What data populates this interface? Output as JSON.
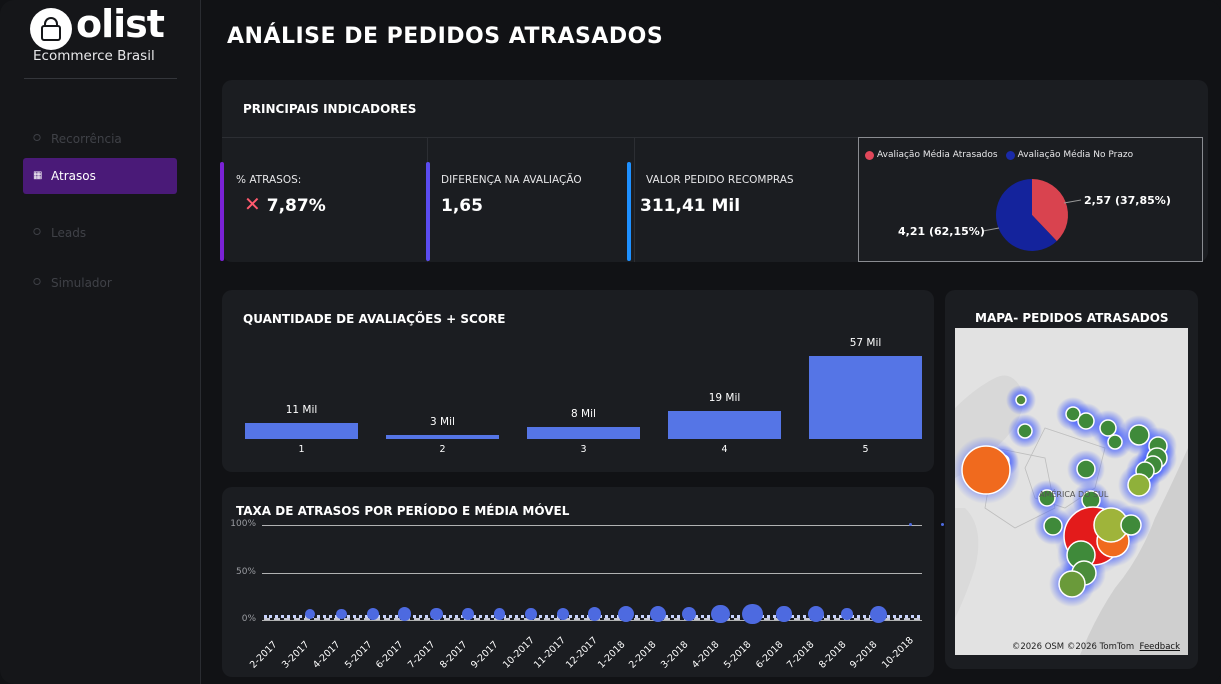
{
  "brand": {
    "name": "olist",
    "subtitle": "Ecommerce Brasil",
    "icon": "shopping-bag-icon"
  },
  "nav": {
    "items": [
      {
        "label": "Recorrência",
        "icon": "share-icon",
        "active": false
      },
      {
        "label": "Atrasos",
        "icon": "grid-icon",
        "active": true
      },
      {
        "label": "Leads",
        "icon": "share-icon",
        "active": false
      },
      {
        "label": "Simulador",
        "icon": "share-icon",
        "active": false
      }
    ]
  },
  "page": {
    "title": "ANÁLISE DE PEDIDOS ATRASADOS"
  },
  "kpis": {
    "title": "PRINCIPAIS INDICADORES",
    "items": [
      {
        "label": "% ATRASOS:",
        "value": "7,87%",
        "accent": "#7b22d6",
        "icon": "x-mark-icon"
      },
      {
        "label": "DIFERENÇA NA AVALIAÇÃO",
        "value": "1,65",
        "accent": "#5b4cf0"
      },
      {
        "label": "VALOR PEDIDO RECOMPRAS",
        "value": "311,41 Mil",
        "accent": "#1e90ff"
      }
    ],
    "pie": {
      "legend": [
        {
          "label": "Avaliação Média Atrasados",
          "color": "#e0475a"
        },
        {
          "label": "Avaliação Média No Prazo",
          "color": "#1a2aa8"
        }
      ],
      "slices": [
        {
          "name": "Avaliação Média Atrasados",
          "value": 2.57,
          "percent": 37.85,
          "label": "2,57 (37,85%)",
          "color": "#d9434f"
        },
        {
          "name": "Avaliação Média No Prazo",
          "value": 4.21,
          "percent": 62.15,
          "label": "4,21 (62,15%)",
          "color": "#14239c"
        }
      ]
    }
  },
  "chart_data": [
    {
      "type": "bar",
      "title": "QUANTIDADE DE AVALIAÇÕES + SCORE",
      "categories": [
        "1",
        "2",
        "3",
        "4",
        "5"
      ],
      "values": [
        11,
        3,
        8,
        19,
        57
      ],
      "value_labels": [
        "11 Mil",
        "3 Mil",
        "8 Mil",
        "19 Mil",
        "57 Mil"
      ],
      "unit": "Mil",
      "color": "#5575e6",
      "ylim": [
        0,
        57
      ]
    },
    {
      "type": "scatter",
      "title": "TAXA DE ATRASOS POR PERÍODO E MÉDIA MÓVEL",
      "x": [
        "2-2017",
        "3-2017",
        "4-2017",
        "5-2017",
        "6-2017",
        "7-2017",
        "8-2017",
        "9-2017",
        "10-2017",
        "11-2017",
        "12-2017",
        "1-2018",
        "2-2018",
        "3-2018",
        "4-2018",
        "5-2018",
        "6-2018",
        "7-2018",
        "8-2018",
        "9-2018",
        "10-2018"
      ],
      "values": [
        3,
        3,
        5,
        6,
        5,
        4,
        4,
        4,
        5,
        6,
        9,
        9,
        7,
        12,
        14,
        8,
        9,
        4,
        10,
        100,
        100
      ],
      "yticks": [
        "0%",
        "50%",
        "100%"
      ],
      "ylim": [
        0,
        100
      ],
      "color": "#4d6ae0",
      "grid": true
    }
  ],
  "map": {
    "title": "MAPA- PEDIDOS ATRASADOS",
    "region_label": "AMÉRICA DO SUL",
    "attribution": "©2026 OSM  ©2026 TomTom",
    "feedback": "Feedback"
  }
}
